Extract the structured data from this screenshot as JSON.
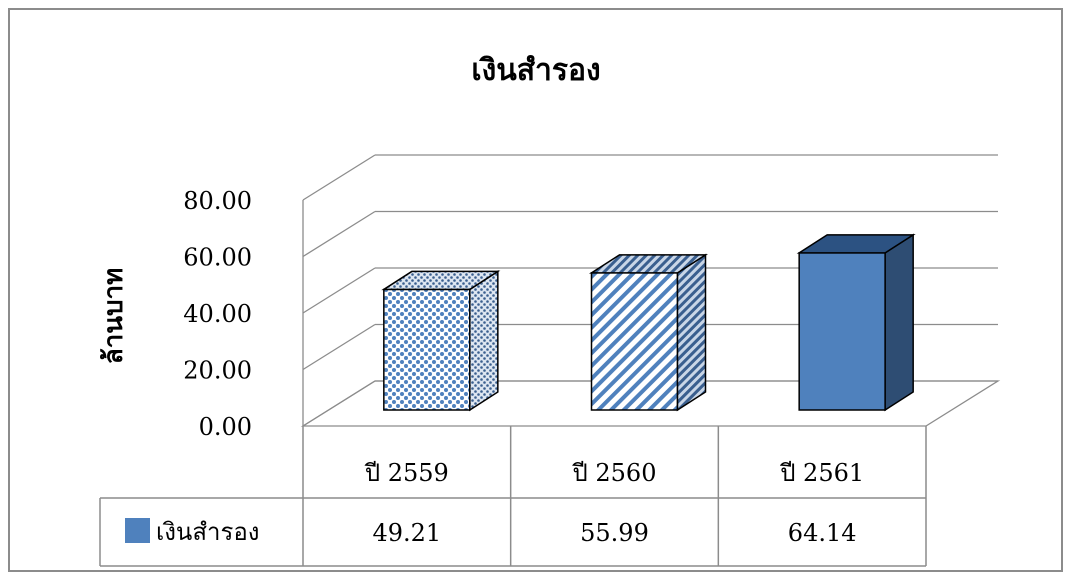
{
  "chart_data": {
    "type": "bar",
    "title": "เงินสำรอง",
    "ylabel": "ล้านบาท",
    "xlabel": "",
    "categories": [
      "ปี  2559",
      "ปี  2560",
      "ปี  2561"
    ],
    "series": [
      {
        "name": "เงินสำรอง",
        "values": [
          49.21,
          55.99,
          64.14
        ],
        "color": "#4f81bd"
      }
    ],
    "ylim": [
      0,
      80
    ],
    "yticks": [
      "0.00",
      "20.00",
      "40.00",
      "60.00",
      "80.00"
    ],
    "data_table": {
      "legend_label": "เงินสำรอง",
      "cells": [
        "49.21",
        "55.99",
        "64.14"
      ]
    },
    "bar_fill_styles": [
      "dotted-pattern",
      "diagonal-stripe-pattern",
      "solid"
    ],
    "grid": true,
    "legend": "data-table-bottom-left"
  }
}
